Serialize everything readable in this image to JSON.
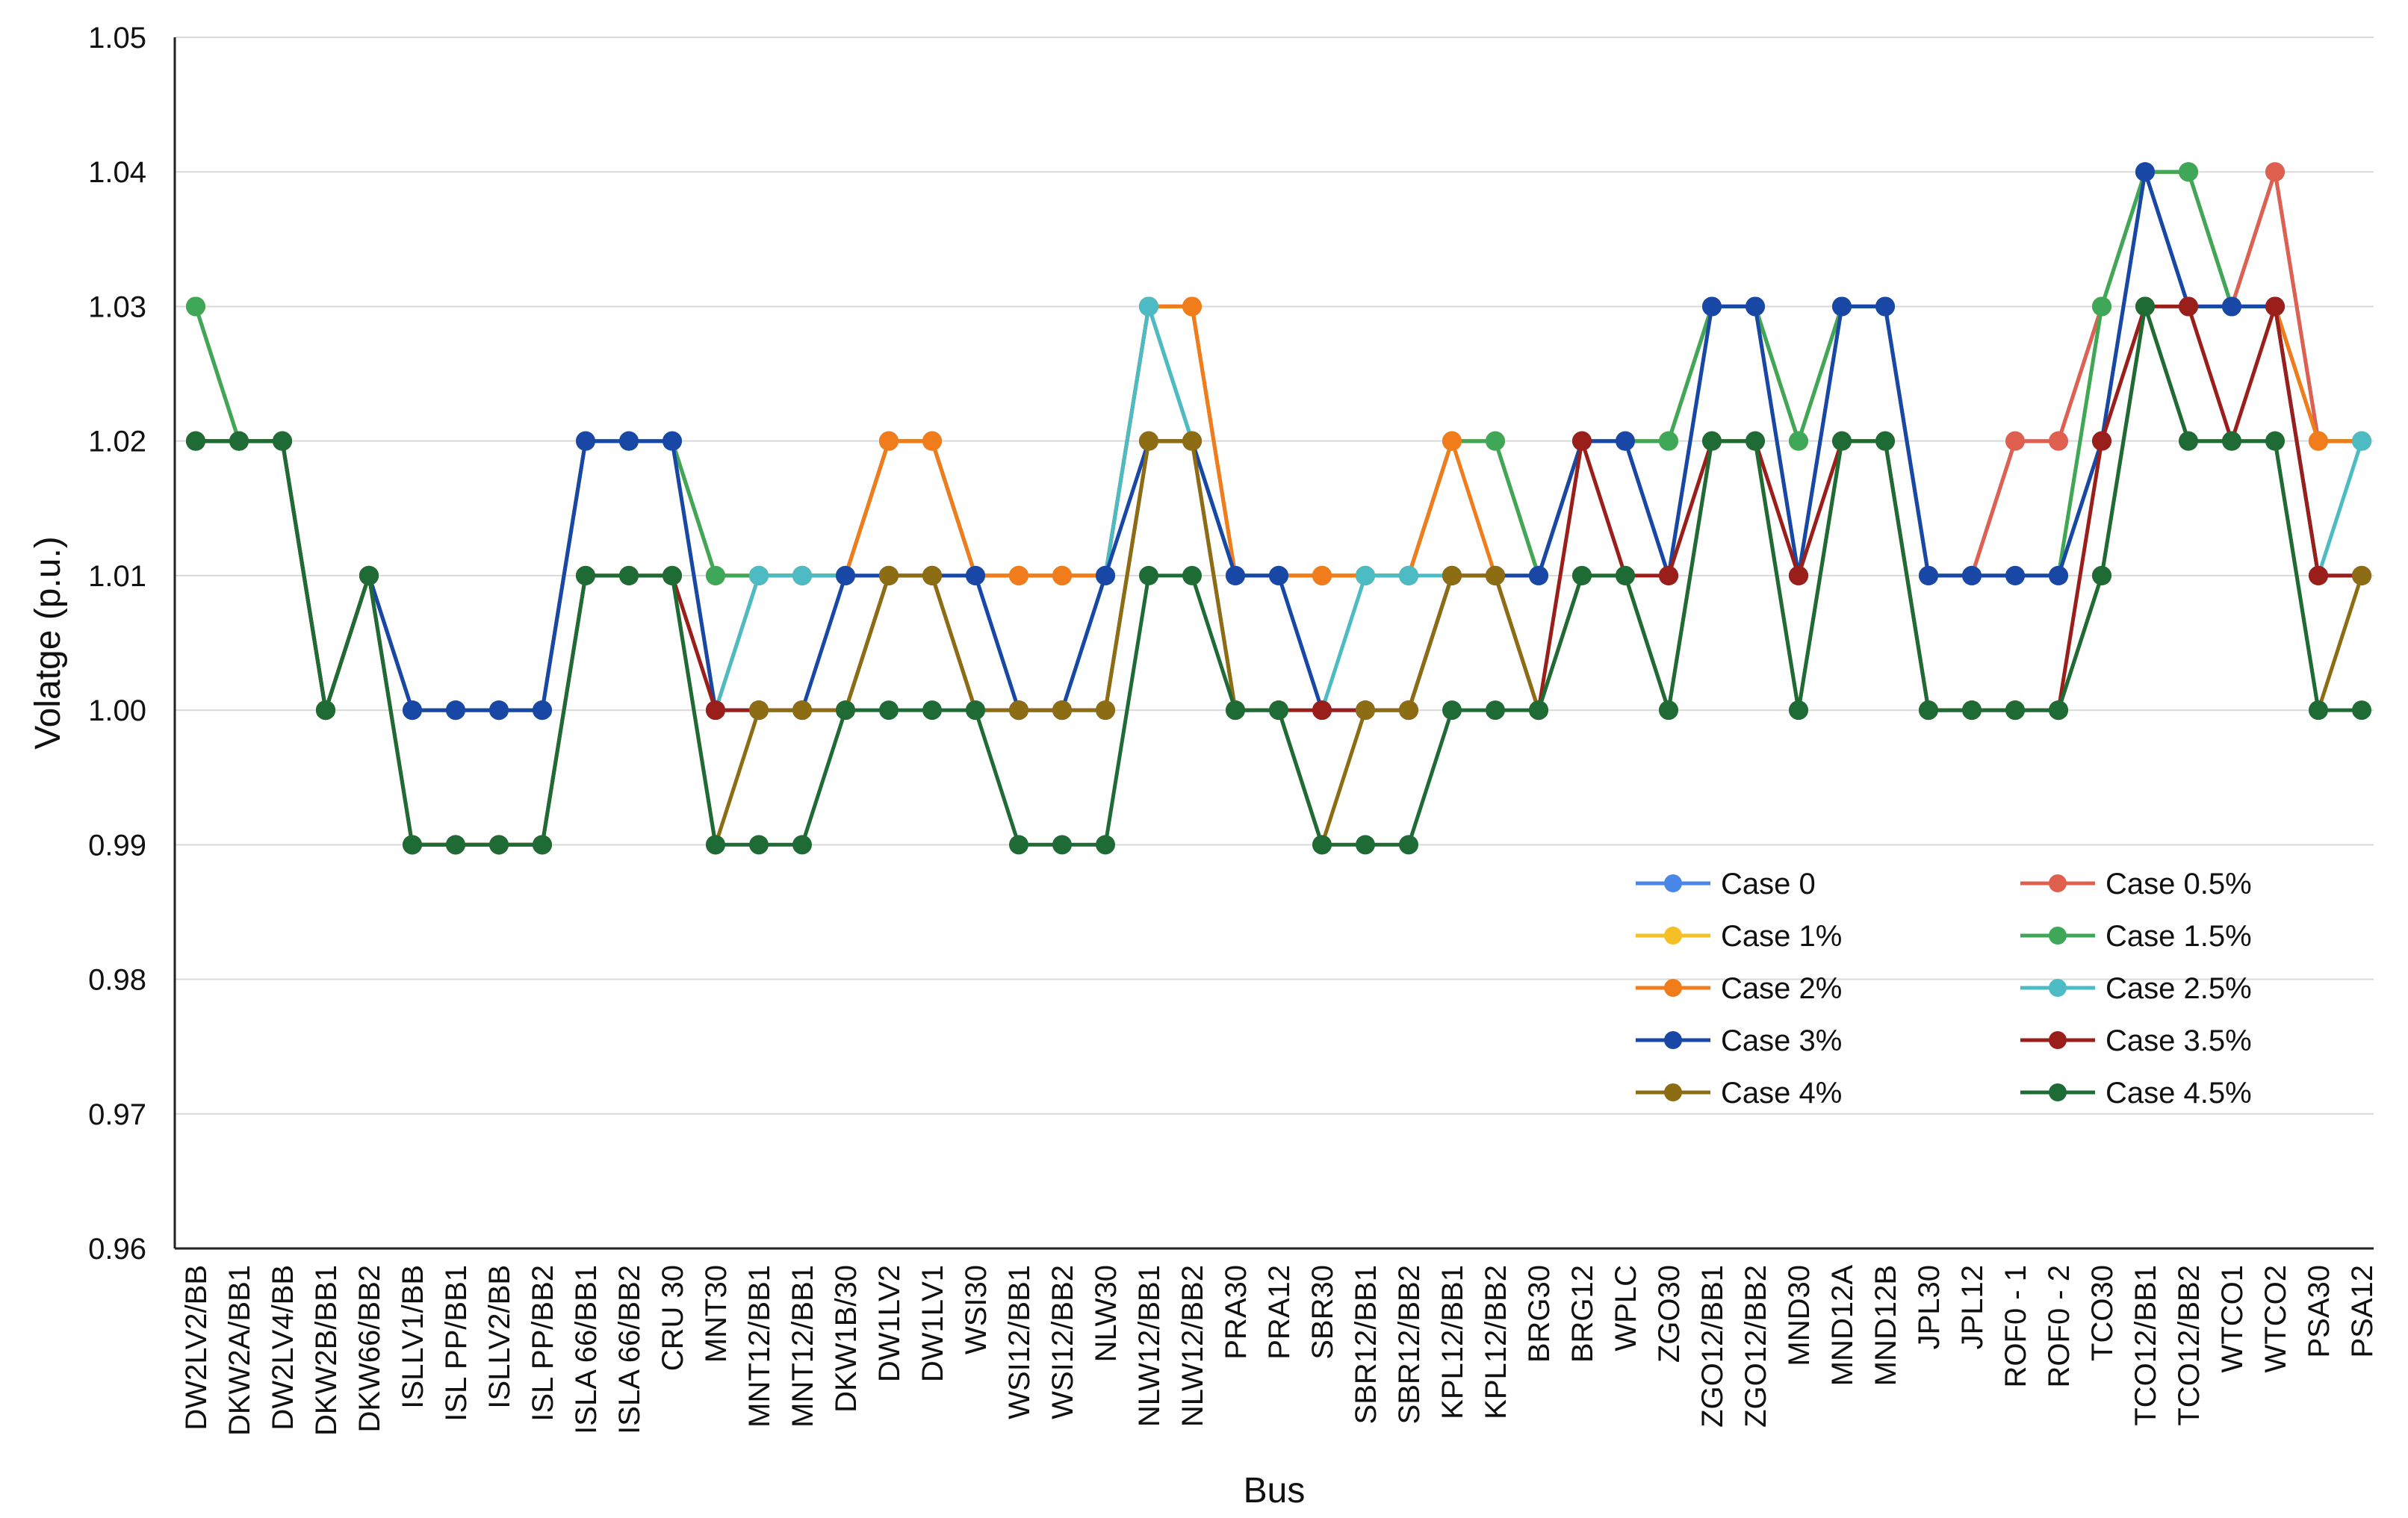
{
  "chart_data": {
    "type": "line",
    "title": "",
    "xlabel": "Bus",
    "ylabel": "Volatge (p.u.)",
    "ylim": [
      0.96,
      1.05
    ],
    "yticks": [
      "0.96",
      "0.97",
      "0.98",
      "0.99",
      "1.00",
      "1.01",
      "1.02",
      "1.03",
      "1.04",
      "1.05"
    ],
    "grid": true,
    "legend_position": "bottom-right",
    "categories": [
      "DW2LV2/BB",
      "DKW2A/BB1",
      "DW2LV4/BB",
      "DKW2B/BB1",
      "DKW66/BB2",
      "ISLLV1/BB",
      "ISL PP/BB1",
      "ISLLV2/BB",
      "ISL PP/BB2",
      "ISLA 66/BB1",
      "ISLA 66/BB2",
      "CRU 30",
      "MNT30",
      "MNT12/BB1",
      "MNT12/BB1",
      "DKW1B/30",
      "DW1LV2",
      "DW1LV1",
      "WSI30",
      "WSI12/BB1",
      "WSI12/BB2",
      "NLW30",
      "NLW12/BB1",
      "NLW12/BB2",
      "PRA30",
      "PRA12",
      "SBR30",
      "SBR12/BB1",
      "SBR12/BB2",
      "KPL12/BB1",
      "KPL12/BB2",
      "BRG30",
      "BRG12",
      "WPLC",
      "ZGO30",
      "ZGO12/BB1",
      "ZGO12/BB2",
      "MND30",
      "MND12A",
      "MND12B",
      "JPL30",
      "JPL12",
      "ROF0 - 1",
      "ROF0 - 2",
      "TCO30",
      "TCO12/BB1",
      "TCO12/BB2",
      "WTCO1",
      "WTCO2",
      "PSA30",
      "PSA12"
    ],
    "series": [
      {
        "name": "Case 0",
        "color": "#4A86E8",
        "values": [
          1.03,
          1.02,
          1.02,
          1.0,
          1.01,
          1.0,
          1.0,
          1.0,
          1.0,
          1.02,
          1.02,
          1.02,
          1.01,
          1.01,
          1.01,
          1.01,
          1.02,
          1.02,
          1.01,
          1.01,
          1.01,
          1.01,
          1.03,
          1.03,
          1.01,
          1.01,
          1.01,
          1.01,
          1.01,
          1.02,
          1.02,
          1.01,
          1.02,
          1.02,
          1.02,
          1.03,
          1.03,
          1.02,
          1.03,
          1.03,
          1.01,
          1.01,
          1.02,
          1.02,
          1.03,
          1.04,
          1.04,
          1.03,
          1.04,
          1.02,
          1.02
        ]
      },
      {
        "name": "Case 0.5%",
        "color": "#E06050",
        "values": [
          1.03,
          1.02,
          1.02,
          1.0,
          1.01,
          1.0,
          1.0,
          1.0,
          1.0,
          1.02,
          1.02,
          1.02,
          1.01,
          1.01,
          1.01,
          1.01,
          1.02,
          1.02,
          1.01,
          1.01,
          1.01,
          1.01,
          1.03,
          1.03,
          1.01,
          1.01,
          1.01,
          1.01,
          1.01,
          1.02,
          1.02,
          1.01,
          1.02,
          1.02,
          1.02,
          1.03,
          1.03,
          1.02,
          1.03,
          1.03,
          1.01,
          1.01,
          1.02,
          1.02,
          1.03,
          1.04,
          1.04,
          1.03,
          1.04,
          1.02,
          1.02
        ]
      },
      {
        "name": "Case 1%",
        "color": "#F6BF26",
        "values": [
          1.03,
          1.02,
          1.02,
          1.0,
          1.01,
          1.0,
          1.0,
          1.0,
          1.0,
          1.02,
          1.02,
          1.02,
          1.01,
          1.01,
          1.01,
          1.01,
          1.02,
          1.02,
          1.01,
          1.01,
          1.01,
          1.01,
          1.03,
          1.03,
          1.01,
          1.01,
          1.01,
          1.01,
          1.01,
          1.02,
          1.02,
          1.01,
          1.02,
          1.02,
          1.02,
          1.03,
          1.03,
          1.02,
          1.03,
          1.03,
          1.01,
          1.01,
          1.01,
          1.01,
          1.03,
          1.04,
          1.04,
          1.03,
          1.03,
          1.02,
          1.02
        ]
      },
      {
        "name": "Case 1.5%",
        "color": "#3FA758",
        "values": [
          1.03,
          1.02,
          1.02,
          1.0,
          1.01,
          1.0,
          1.0,
          1.0,
          1.0,
          1.02,
          1.02,
          1.02,
          1.01,
          1.01,
          1.01,
          1.01,
          1.02,
          1.02,
          1.01,
          1.01,
          1.01,
          1.01,
          1.03,
          1.02,
          1.01,
          1.01,
          1.01,
          1.01,
          1.01,
          1.02,
          1.02,
          1.01,
          1.02,
          1.02,
          1.02,
          1.03,
          1.03,
          1.02,
          1.03,
          1.03,
          1.01,
          1.01,
          1.01,
          1.01,
          1.03,
          1.04,
          1.04,
          1.03,
          1.03,
          1.02,
          1.02
        ]
      },
      {
        "name": "Case 2%",
        "color": "#F07C1C",
        "values": [
          1.02,
          1.02,
          1.02,
          1.0,
          1.01,
          1.0,
          1.0,
          1.0,
          1.0,
          1.02,
          1.02,
          1.02,
          1.0,
          1.01,
          1.01,
          1.01,
          1.02,
          1.02,
          1.01,
          1.01,
          1.01,
          1.01,
          1.03,
          1.03,
          1.01,
          1.01,
          1.01,
          1.01,
          1.01,
          1.02,
          1.01,
          1.01,
          1.02,
          1.02,
          1.01,
          1.03,
          1.03,
          1.01,
          1.03,
          1.03,
          1.01,
          1.01,
          1.01,
          1.01,
          1.02,
          1.04,
          1.03,
          1.03,
          1.03,
          1.02,
          1.02
        ]
      },
      {
        "name": "Case 2.5%",
        "color": "#4DBBC4",
        "values": [
          1.02,
          1.02,
          1.02,
          1.0,
          1.01,
          1.0,
          1.0,
          1.0,
          1.0,
          1.02,
          1.02,
          1.02,
          1.0,
          1.01,
          1.01,
          1.01,
          1.01,
          1.01,
          1.01,
          1.0,
          1.0,
          1.01,
          1.03,
          1.02,
          1.01,
          1.01,
          1.0,
          1.01,
          1.01,
          1.01,
          1.01,
          1.01,
          1.02,
          1.02,
          1.01,
          1.03,
          1.03,
          1.01,
          1.03,
          1.03,
          1.01,
          1.01,
          1.01,
          1.01,
          1.02,
          1.04,
          1.03,
          1.03,
          1.03,
          1.01,
          1.02
        ]
      },
      {
        "name": "Case 3%",
        "color": "#1847A6",
        "values": [
          1.02,
          1.02,
          1.02,
          1.0,
          1.01,
          1.0,
          1.0,
          1.0,
          1.0,
          1.02,
          1.02,
          1.02,
          1.0,
          1.0,
          1.0,
          1.01,
          1.01,
          1.01,
          1.01,
          1.0,
          1.0,
          1.01,
          1.02,
          1.02,
          1.01,
          1.01,
          1.0,
          1.0,
          1.0,
          1.01,
          1.01,
          1.01,
          1.02,
          1.02,
          1.01,
          1.03,
          1.03,
          1.01,
          1.03,
          1.03,
          1.01,
          1.01,
          1.01,
          1.01,
          1.02,
          1.04,
          1.03,
          1.03,
          1.03,
          1.01,
          1.01
        ]
      },
      {
        "name": "Case 3.5%",
        "color": "#9A1F1B",
        "values": [
          1.02,
          1.02,
          1.02,
          1.0,
          1.01,
          0.99,
          0.99,
          0.99,
          0.99,
          1.01,
          1.01,
          1.01,
          1.0,
          1.0,
          1.0,
          1.0,
          1.01,
          1.01,
          1.0,
          1.0,
          1.0,
          1.0,
          1.02,
          1.02,
          1.0,
          1.0,
          1.0,
          1.0,
          1.0,
          1.01,
          1.01,
          1.0,
          1.02,
          1.01,
          1.01,
          1.02,
          1.02,
          1.01,
          1.02,
          1.02,
          1.0,
          1.0,
          1.0,
          1.0,
          1.02,
          1.03,
          1.03,
          1.02,
          1.03,
          1.01,
          1.01
        ]
      },
      {
        "name": "Case 4%",
        "color": "#8C6D14",
        "values": [
          1.02,
          1.02,
          1.02,
          1.0,
          1.01,
          0.99,
          0.99,
          0.99,
          0.99,
          1.01,
          1.01,
          1.01,
          0.99,
          1.0,
          1.0,
          1.0,
          1.01,
          1.01,
          1.0,
          1.0,
          1.0,
          1.0,
          1.02,
          1.02,
          1.0,
          1.0,
          0.99,
          1.0,
          1.0,
          1.01,
          1.01,
          1.0,
          1.01,
          1.01,
          1.0,
          1.02,
          1.02,
          1.0,
          1.02,
          1.02,
          1.0,
          1.0,
          1.0,
          1.0,
          1.01,
          1.03,
          1.02,
          1.02,
          1.02,
          1.0,
          1.01
        ]
      },
      {
        "name": "Case 4.5%",
        "color": "#1E6B36",
        "values": [
          1.02,
          1.02,
          1.02,
          1.0,
          1.01,
          0.99,
          0.99,
          0.99,
          0.99,
          1.01,
          1.01,
          1.01,
          0.99,
          0.99,
          0.99,
          1.0,
          1.0,
          1.0,
          1.0,
          0.99,
          0.99,
          0.99,
          1.01,
          1.01,
          1.0,
          1.0,
          0.99,
          0.99,
          0.99,
          1.0,
          1.0,
          1.0,
          1.01,
          1.01,
          1.0,
          1.02,
          1.02,
          1.0,
          1.02,
          1.02,
          1.0,
          1.0,
          1.0,
          1.0,
          1.01,
          1.03,
          1.02,
          1.02,
          1.02,
          1.0,
          1.0
        ]
      }
    ]
  }
}
